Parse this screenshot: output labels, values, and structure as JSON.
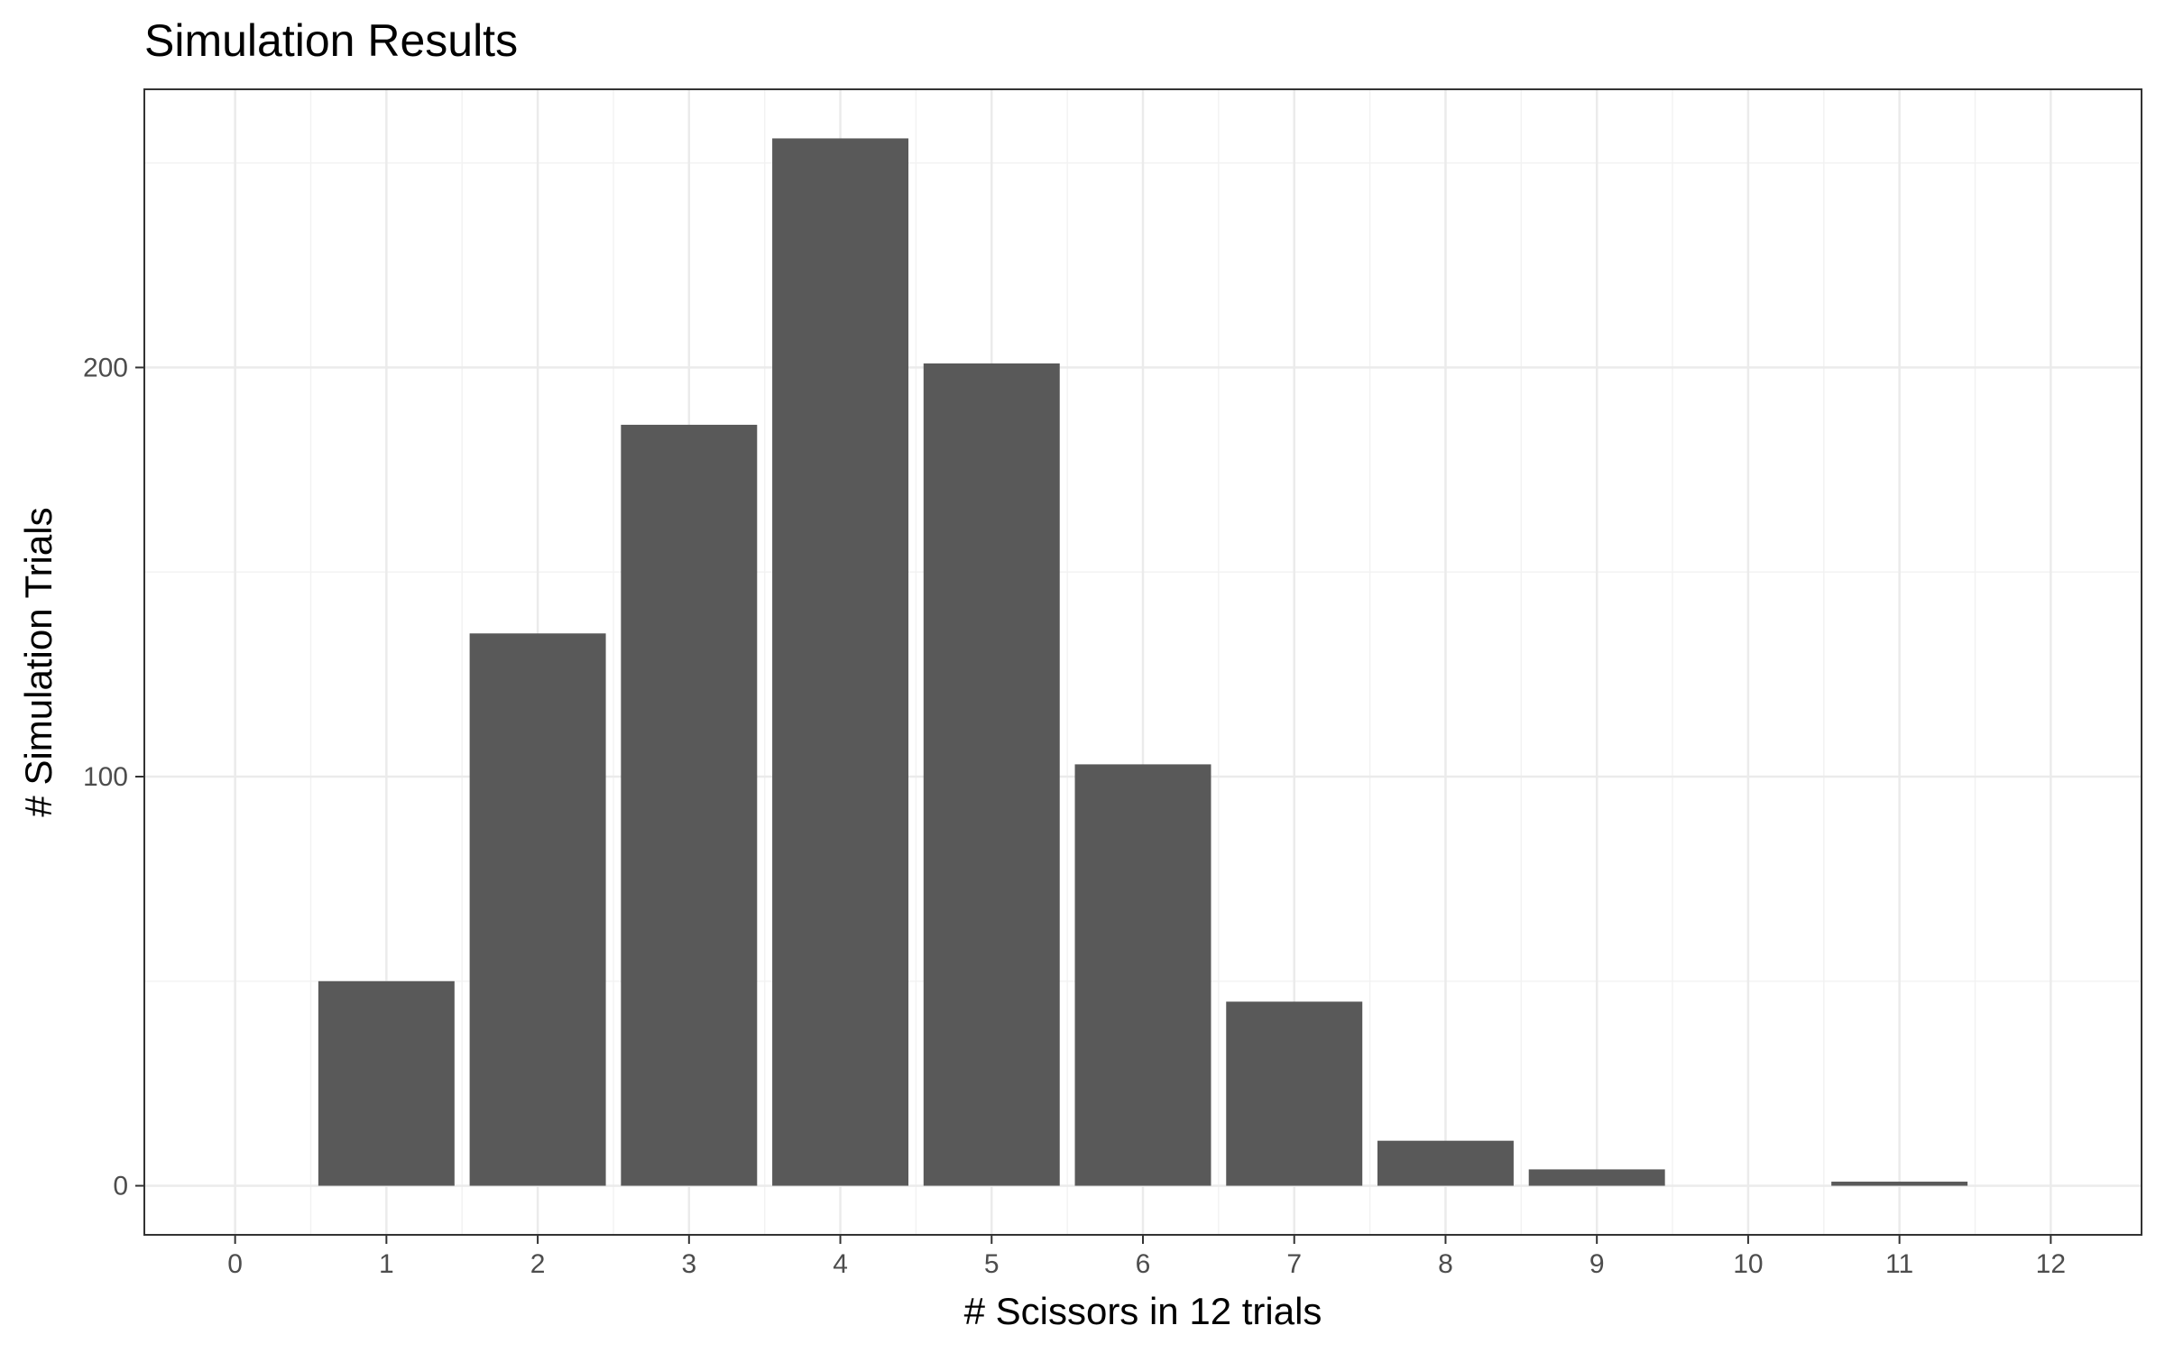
{
  "chart_data": {
    "type": "bar",
    "title": "Simulation Results",
    "xlabel": "# Scissors in 12 trials",
    "ylabel": "# Simulation Trials",
    "categories": [
      "0",
      "1",
      "2",
      "3",
      "4",
      "5",
      "6",
      "7",
      "8",
      "9",
      "10",
      "11",
      "12"
    ],
    "x": [
      0,
      1,
      2,
      3,
      4,
      5,
      6,
      7,
      8,
      9,
      10,
      11,
      12
    ],
    "values": [
      0,
      50,
      135,
      186,
      256,
      201,
      103,
      45,
      11,
      4,
      0,
      1,
      0
    ],
    "xlim": [
      -0.6,
      12.6
    ],
    "ylim": [
      -12,
      268
    ],
    "y_ticks": [
      0,
      100,
      200
    ],
    "y_minor_ticks": [
      50,
      150,
      250
    ],
    "grid": true,
    "legend": "none",
    "colors": {
      "bar": "#595959",
      "grid": "#ebebeb",
      "panel_border": "#333333",
      "background": "#ffffff"
    }
  }
}
